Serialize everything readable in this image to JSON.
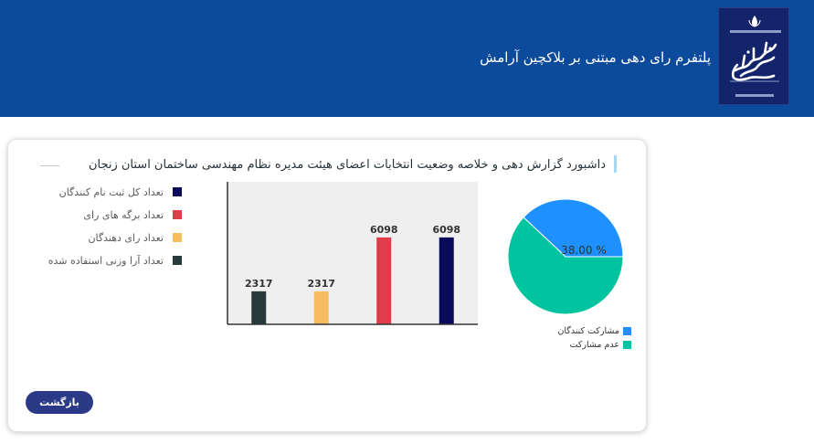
{
  "header": {
    "title": "پلتفرم رای دهی مبتنی بر بلاکچین آرامش"
  },
  "dashboard": {
    "title": "داشبورد گزارش دهی و خلاصه وضعیت انتخابات اعضای هیئت مدیره نظام مهندسی ساختمان استان زنجان"
  },
  "colors": {
    "header_bg": "#0c4a9c",
    "logo_bg": "#14246a",
    "registered": "#0a0a5c",
    "ballots": "#e03c4a",
    "voters": "#f6bd60",
    "weighted": "#283a3a",
    "participation": "#1e90ff",
    "non_participation": "#00c4a0",
    "button_bg": "#2a3a86"
  },
  "chart_data": [
    {
      "type": "bar",
      "categories": [
        "تعداد آرا وزنی استفاده شده",
        "تعداد رای دهندگان",
        "تعداد برگه های رای",
        "تعداد کل ثبت نام کنندگان"
      ],
      "values": [
        2317,
        2317,
        6098,
        6098
      ],
      "value_labels": [
        "2317",
        "2317",
        "6098",
        "6098"
      ],
      "colors": [
        "#283a3a",
        "#f6bd60",
        "#e03c4a",
        "#0a0a5c"
      ],
      "legend": [
        {
          "label": "تعداد کل ثبت نام کنندگان",
          "color": "#0a0a5c"
        },
        {
          "label": "تعداد برگه های رای",
          "color": "#e03c4a"
        },
        {
          "label": "تعداد رای دهندگان",
          "color": "#f6bd60"
        },
        {
          "label": "تعداد آرا وزنی استفاده شده",
          "color": "#283a3a"
        }
      ],
      "ylim": [
        0,
        10000
      ],
      "grid": false,
      "legend_position": "left"
    },
    {
      "type": "pie",
      "slices": [
        {
          "label": "مشارکت کنندگان",
          "value": 38.0,
          "color": "#1e90ff"
        },
        {
          "label": "عدم مشارکت",
          "value": 62.0,
          "color": "#00c4a0"
        }
      ],
      "center_label": "38.00 %",
      "legend_position": "bottom"
    }
  ],
  "actions": {
    "back_label": "بازگشت"
  }
}
